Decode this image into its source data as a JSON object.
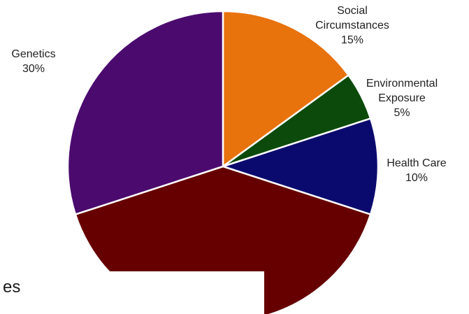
{
  "chart_data": {
    "type": "pie",
    "title": "",
    "slices": [
      {
        "label_lines": [
          "Social",
          "Circumstances"
        ],
        "pct_text": "15%",
        "value": 15,
        "color": "#E8720C"
      },
      {
        "label_lines": [
          "Environmental",
          "Exposure"
        ],
        "pct_text": "5%",
        "value": 5,
        "color": "#0B4A0B"
      },
      {
        "label_lines": [
          "Health Care"
        ],
        "pct_text": "10%",
        "value": 10,
        "color": "#0A0A6E"
      },
      {
        "label_lines": [],
        "pct_text": "",
        "value": 40,
        "color": "#660000"
      },
      {
        "label_lines": [
          "Genetics"
        ],
        "pct_text": "30%",
        "value": 30,
        "color": "#4B0B6E"
      }
    ]
  },
  "cut_text": "es"
}
